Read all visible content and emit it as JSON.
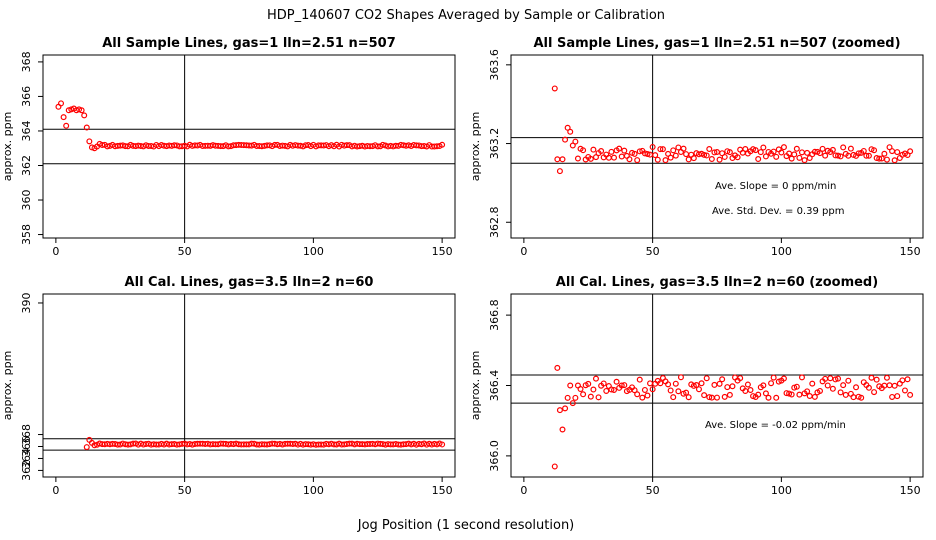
{
  "figure": {
    "title": "HDP_140607  CO2 Shapes Averaged by Sample or Calibration",
    "xlabel": "Jog Position (1 second resolution)",
    "point_color": "#ff0000",
    "frame_color": "#000000"
  },
  "chart_data": [
    {
      "type": "scatter",
      "title": "All Sample Lines, gas=1 lln=2.51 n=507",
      "ylabel": "approx. ppm",
      "xlim": [
        -5,
        155
      ],
      "ylim": [
        357.8,
        368.4
      ],
      "xticks": [
        0,
        50,
        100,
        150
      ],
      "yticks": [
        358,
        360,
        362,
        364,
        366,
        368
      ],
      "vline": 50,
      "hlines": [
        362.1,
        364.1
      ],
      "annotations": [],
      "start_values": [
        365.4,
        365.6,
        364.8,
        364.3,
        365.2,
        365.25,
        365.3,
        365.2,
        365.25,
        365.2,
        364.9,
        364.2,
        363.4,
        363.05,
        363.0,
        363.1,
        363.25
      ],
      "plateau": {
        "x_from": 18,
        "x_to": 150,
        "base": 363.15,
        "amp": 0.05
      }
    },
    {
      "type": "scatter",
      "title": "All Sample Lines, gas=1 lln=2.51 n=507 (zoomed)",
      "ylabel": "approx. ppm",
      "xlim": [
        -5,
        155
      ],
      "ylim": [
        362.72,
        363.65
      ],
      "xticks": [
        0,
        50,
        100,
        150
      ],
      "yticks": [
        362.8,
        363.2,
        363.6
      ],
      "vline": 50,
      "hlines": [
        363.1,
        363.23
      ],
      "annotations": [
        "Ave. Slope =  0  ppm/min",
        "Ave. Std. Dev. =  0.39  ppm"
      ],
      "start_values": [
        363.48,
        363.12,
        363.06,
        363.12,
        363.22,
        363.28,
        363.26,
        363.19,
        363.21
      ],
      "plateau": {
        "x_from": 21,
        "x_to": 150,
        "base": 363.15,
        "amp": 0.035
      }
    },
    {
      "type": "scatter",
      "title": "All Cal. Lines, gas=3.5 lln=2 n=60",
      "ylabel": "approx. ppm",
      "xlim": [
        -5,
        155
      ],
      "ylim": [
        360.9,
        391.5
      ],
      "xticks": [
        0,
        50,
        100,
        150
      ],
      "yticks": [
        362,
        364,
        366,
        368,
        390
      ],
      "ytick_labels": [
        "362",
        "364",
        "366",
        "368",
        "390"
      ],
      "vline": 50,
      "hlines": [
        365.4,
        367.3
      ],
      "annotations": [],
      "start_values": [
        365.9,
        367.1,
        366.6,
        366.2,
        366.3,
        366.5,
        366.4
      ],
      "plateau": {
        "x_from": 19,
        "x_to": 150,
        "base": 366.4,
        "amp": 0.1
      }
    },
    {
      "type": "scatter",
      "title": "All Cal. Lines, gas=3.5 lln=2 n=60 (zoomed)",
      "ylabel": "approx. ppm",
      "xlim": [
        -5,
        155
      ],
      "ylim": [
        365.88,
        366.92
      ],
      "xticks": [
        0,
        50,
        100,
        150
      ],
      "yticks": [
        366.0,
        366.4,
        366.8
      ],
      "vline": 50,
      "hlines": [
        366.3,
        366.46
      ],
      "annotations": [
        "Ave. Slope =  -0.02  ppm/min"
      ],
      "start_values": [
        365.94,
        366.5,
        366.26,
        366.15,
        366.27,
        366.33,
        366.4,
        366.3,
        366.33,
        366.4,
        366.38,
        366.35
      ],
      "plateau": {
        "x_from": 24,
        "x_to": 150,
        "base": 366.39,
        "amp": 0.06
      }
    }
  ]
}
